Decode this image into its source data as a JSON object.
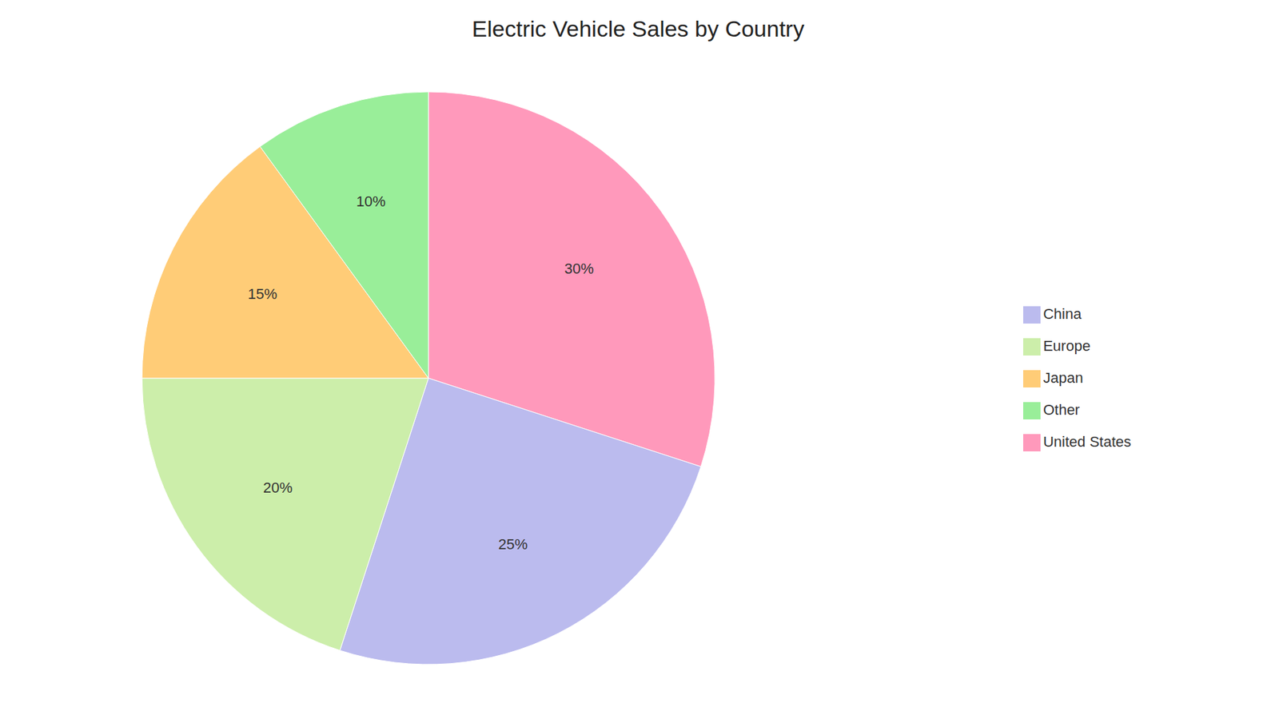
{
  "chart_data": {
    "type": "pie",
    "title": "Electric Vehicle Sales by Country",
    "categories": [
      "United States",
      "China",
      "Europe",
      "Japan",
      "Other"
    ],
    "values": [
      30,
      25,
      20,
      15,
      10
    ],
    "value_labels": [
      "30%",
      "25%",
      "20%",
      "15%",
      "10%"
    ],
    "colors": [
      "#FF99BB",
      "#BBBBEE",
      "#CCEEAA",
      "#FFCC77",
      "#99EE99"
    ],
    "data_labels": true,
    "legend": "right"
  }
}
